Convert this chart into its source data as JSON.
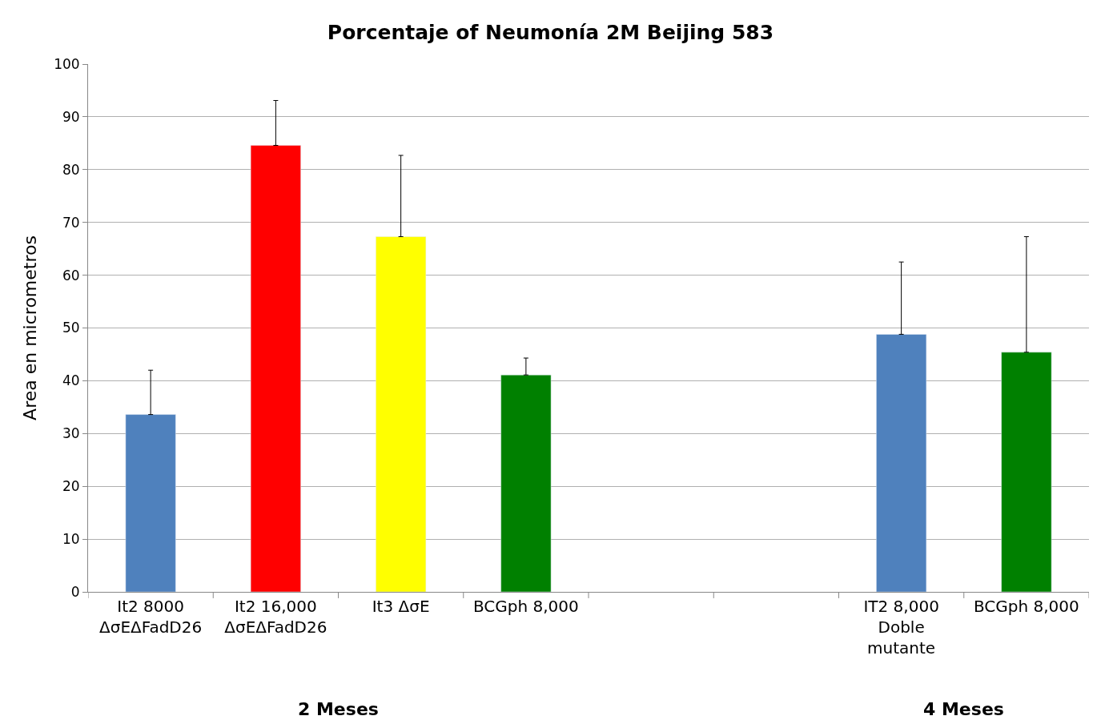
{
  "chart_data": {
    "type": "bar",
    "title": "Porcentaje of Neumonía 2M Beijing 583",
    "ylabel": "Area en micrometros",
    "categories": [
      "It2 8000\nΔσEΔFadD26",
      "It2 16,000\nΔσEΔFadD26",
      "It3 ΔσE",
      "BCGph 8,000",
      null,
      null,
      "IT2 8,000\nDoble\nmutante",
      "BCGph 8,000"
    ],
    "values": [
      33.6,
      84.6,
      67.3,
      41.1,
      null,
      null,
      48.8,
      45.4
    ],
    "colors": [
      "#4f81bd",
      "#ff0000",
      "#ffff00",
      "#008000",
      null,
      null,
      "#4f81bd",
      "#008000"
    ],
    "errors": [
      [
        33.6,
        42.0
      ],
      [
        84.6,
        93.1
      ],
      [
        67.3,
        82.7
      ],
      [
        41.1,
        44.3
      ],
      null,
      null,
      [
        48.8,
        62.5
      ],
      [
        45.4,
        67.3
      ]
    ],
    "annotations": [
      "2 Meses",
      "4 Meses"
    ],
    "ylim": [
      0,
      100
    ],
    "yticks": [
      0,
      10,
      20,
      30,
      40,
      50,
      60,
      70,
      80,
      90,
      100
    ],
    "grid": "y",
    "legend": false
  }
}
